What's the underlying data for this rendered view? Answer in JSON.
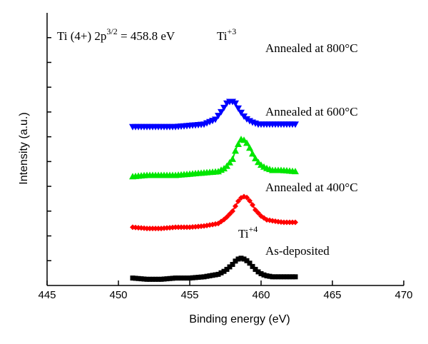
{
  "chart_data": {
    "type": "scatter",
    "title": "",
    "xlabel": "Binding energy (eV)",
    "ylabel": "Intensity (a.u.)",
    "xlim": [
      445,
      470
    ],
    "xticks": [
      445,
      450,
      455,
      460,
      465,
      470
    ],
    "ylim": [
      0,
      11
    ],
    "yticks_labeled": false,
    "grid": false,
    "legend": "none",
    "series": [
      {
        "name": "As-deposited",
        "color": "#000000",
        "marker": "square",
        "x": [
          451.0,
          452.0,
          453.0,
          454.0,
          455.0,
          456.0,
          457.0,
          457.5,
          458.0,
          458.3,
          458.6,
          458.9,
          459.2,
          459.5,
          459.9,
          460.3,
          460.8,
          461.5,
          462.5
        ],
        "values": [
          0.3,
          0.25,
          0.25,
          0.3,
          0.3,
          0.35,
          0.45,
          0.6,
          0.85,
          1.05,
          1.1,
          1.05,
          0.9,
          0.7,
          0.5,
          0.4,
          0.35,
          0.35,
          0.35
        ]
      },
      {
        "name": "Annealed at 400°C",
        "color": "#ff0000",
        "marker": "diamond",
        "x": [
          451.0,
          452.0,
          453.0,
          454.0,
          455.0,
          456.0,
          457.0,
          457.5,
          458.0,
          458.4,
          458.7,
          459.0,
          459.3,
          459.6,
          460.0,
          460.4,
          460.9,
          461.5,
          462.5
        ],
        "values": [
          2.35,
          2.3,
          2.3,
          2.35,
          2.35,
          2.4,
          2.5,
          2.7,
          3.0,
          3.4,
          3.6,
          3.55,
          3.35,
          3.05,
          2.8,
          2.65,
          2.6,
          2.55,
          2.55
        ]
      },
      {
        "name": "Annealed at 600°C",
        "color": "#00e600",
        "marker": "triangle-up",
        "x": [
          451.0,
          452.0,
          453.0,
          454.0,
          455.0,
          456.0,
          457.0,
          457.5,
          458.0,
          458.3,
          458.6,
          458.9,
          459.2,
          459.5,
          459.9,
          460.3,
          460.8,
          461.5,
          462.5
        ],
        "values": [
          4.4,
          4.45,
          4.45,
          4.45,
          4.5,
          4.55,
          4.6,
          4.75,
          5.1,
          5.6,
          5.9,
          5.85,
          5.55,
          5.2,
          4.9,
          4.75,
          4.65,
          4.65,
          4.6
        ]
      },
      {
        "name": "Annealed at 800°C",
        "color": "#0000ff",
        "marker": "triangle-down",
        "x": [
          451.0,
          452.0,
          453.0,
          454.0,
          455.0,
          456.0,
          456.8,
          457.2,
          457.6,
          457.9,
          458.2,
          458.5,
          458.9,
          459.3,
          459.8,
          460.4,
          461.0,
          461.8,
          462.5
        ],
        "values": [
          6.4,
          6.4,
          6.4,
          6.4,
          6.45,
          6.5,
          6.7,
          7.0,
          7.35,
          7.45,
          7.35,
          7.05,
          6.75,
          6.6,
          6.5,
          6.5,
          6.5,
          6.5,
          6.5
        ]
      }
    ],
    "annotations": {
      "reference": {
        "text": "Ti (4+) 2p",
        "sup": "3/2",
        "suffix": " = 458.8 eV"
      },
      "ti3": {
        "text": "Ti",
        "sup": "+3"
      },
      "ti4": {
        "text": "Ti",
        "sup": "+4"
      },
      "curve_labels": [
        "Annealed at 800°C",
        "Annealed at 600°C",
        "Annealed at 400°C",
        "As-deposited"
      ]
    }
  }
}
